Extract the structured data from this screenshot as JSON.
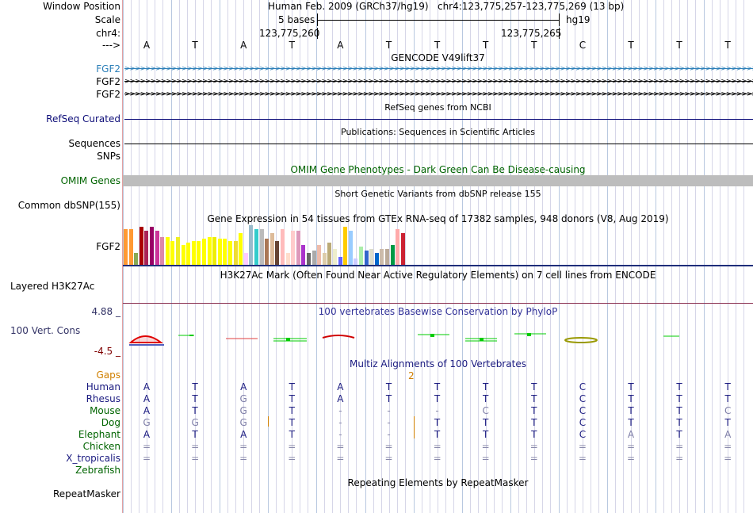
{
  "header": {
    "window_position_label": "Window Position",
    "scale_label": "Scale",
    "chrom_label": "chr4:",
    "strand_label": "--->",
    "assembly": "Human Feb. 2009 (GRCh37/hg19)",
    "position": "chr4:123,775,257-123,775,269 (13 bp)",
    "scale_text": "5 bases",
    "scale_db": "hg19",
    "coord_left": "123,775,260",
    "coord_right": "123,775,265"
  },
  "sequence": [
    "A",
    "T",
    "A",
    "T",
    "A",
    "T",
    "T",
    "T",
    "T",
    "C",
    "T",
    "T",
    "T"
  ],
  "tracks": {
    "gencode": {
      "title": "GENCODE V49lift37",
      "genes": [
        "FGF2",
        "FGF2",
        "FGF2"
      ],
      "colors": [
        "#2c7fb8",
        "#000000",
        "#000000"
      ]
    },
    "refseq": {
      "title": "RefSeq genes from NCBI",
      "label": "RefSeq Curated"
    },
    "publications": {
      "title": "Publications: Sequences in Scientific Articles",
      "label": "Sequences"
    },
    "snps_label": "SNPs",
    "omim": {
      "title": "OMIM Gene Phenotypes - Dark Green Can Be Disease-causing",
      "label": "OMIM Genes"
    },
    "dbsnp": {
      "title": "Short Genetic Variants from dbSNP release 155",
      "label": "Common dbSNP(155)"
    },
    "gtex": {
      "title": "Gene Expression in 54 tissues from GTEx RNA-seq of 17382 samples, 948 donors (V8, Aug 2019)",
      "gene": "FGF2",
      "values": [
        0.9,
        0.9,
        0.3,
        0.95,
        0.85,
        0.95,
        0.85,
        0.7,
        0.7,
        0.6,
        0.7,
        0.5,
        0.55,
        0.6,
        0.6,
        0.65,
        0.7,
        0.7,
        0.65,
        0.65,
        0.6,
        0.6,
        0.8,
        0.3,
        1.0,
        0.9,
        0.9,
        0.65,
        0.8,
        0.6,
        0.9,
        0.3,
        0.85,
        0.85,
        0.5,
        0.3,
        0.35,
        0.5,
        0.3,
        0.55,
        0.4,
        0.2,
        0.95,
        0.85,
        0.15,
        0.45,
        0.35,
        0.4,
        0.3,
        0.4,
        0.4,
        0.5,
        0.9,
        0.8
      ],
      "colors": [
        "#ff9933",
        "#ff9933",
        "#88aa55",
        "#aa0000",
        "#aa2255",
        "#990066",
        "#cc3399",
        "#dd88aa",
        "#ffff00",
        "#ffff00",
        "#eeee22",
        "#ffff00",
        "#ffff00",
        "#ffff00",
        "#ffff00",
        "#ffff00",
        "#ffff00",
        "#eeee00",
        "#ffff00",
        "#ffff00",
        "#ffff00",
        "#eedd33",
        "#ffff00",
        "#ffccff",
        "#99bbcc",
        "#33cccc",
        "#bbbbbb",
        "#aa7755",
        "#ddbb99",
        "#664433",
        "#ffbbbb",
        "#ffddcc",
        "#ffcccc",
        "#dd99bb",
        "#aa33cc",
        "#666666",
        "#aaaaaa",
        "#eebbaa",
        "#ddccaa",
        "#bbaa77",
        "#eeeecc",
        "#6666ff",
        "#ffcc00",
        "#99ccff",
        "#ccccff",
        "#aaeeaa",
        "#3366cc",
        "#ddddcc",
        "#0066cc",
        "#ccbbaa",
        "#bbaa99",
        "#009944",
        "#ffaaaa",
        "#cc2233"
      ]
    },
    "h3k27ac": {
      "title": "H3K27Ac Mark (Often Found Near Active Regulatory Elements) on 7 cell lines from ENCODE",
      "label": "Layered H3K27Ac"
    },
    "phylop": {
      "title": "100 vertebrates Basewise Conservation by PhyloP",
      "label": "100 Vert. Cons",
      "max": "4.88 _",
      "min": "-4.5 _"
    },
    "multiz": {
      "title": "Multiz Alignments of 100 Vertebrates",
      "gaps_label": "Gaps",
      "gap_count": "2",
      "species": [
        {
          "name": "Human",
          "bases": [
            "A",
            "T",
            "A",
            "T",
            "A",
            "T",
            "T",
            "T",
            "T",
            "C",
            "T",
            "T",
            "T"
          ]
        },
        {
          "name": "Rhesus",
          "bases": [
            "A",
            "T",
            "G",
            "T",
            "A",
            "T",
            "T",
            "T",
            "T",
            "C",
            "T",
            "T",
            "T"
          ]
        },
        {
          "name": "Mouse",
          "bases": [
            "A",
            "T",
            "G",
            "T",
            "-",
            "-",
            "-",
            "C",
            "T",
            "C",
            "T",
            "T",
            "C"
          ]
        },
        {
          "name": "Dog",
          "bases": [
            "G",
            "G",
            "G",
            "T",
            "-",
            "-",
            "T",
            "T",
            "T",
            "C",
            "T",
            "T",
            "T"
          ]
        },
        {
          "name": "Elephant",
          "bases": [
            "A",
            "T",
            "A",
            "T",
            "-",
            "-",
            "T",
            "T",
            "T",
            "C",
            "A",
            "T",
            "A"
          ]
        },
        {
          "name": "Chicken",
          "bases": [
            "=",
            "=",
            "=",
            "=",
            "=",
            "=",
            "=",
            "=",
            "=",
            "=",
            "=",
            "=",
            "="
          ]
        },
        {
          "name": "X_tropicalis",
          "bases": [
            "=",
            "=",
            "=",
            "=",
            "=",
            "=",
            "=",
            "=",
            "=",
            "=",
            "=",
            "=",
            "="
          ]
        },
        {
          "name": "Zebrafish",
          "bases": [
            "",
            "",
            "",
            "",
            "",
            "",
            "",
            "",
            "",
            "",
            "",
            "",
            ""
          ]
        }
      ]
    },
    "repeatmasker": {
      "title": "Repeating Elements by RepeatMasker",
      "label": "RepeatMasker"
    }
  }
}
